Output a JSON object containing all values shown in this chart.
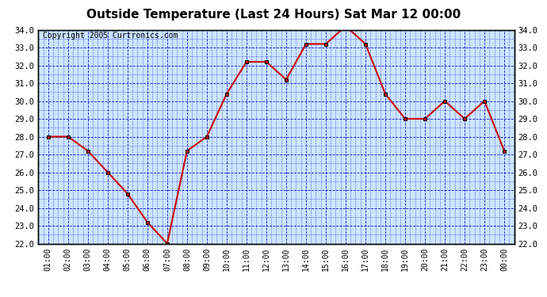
{
  "title": "Outside Temperature (Last 24 Hours) Sat Mar 12 00:00",
  "copyright": "Copyright 2005 Curtronics.com",
  "x_labels": [
    "01:00",
    "02:00",
    "03:00",
    "04:00",
    "05:00",
    "06:00",
    "07:00",
    "08:00",
    "09:00",
    "10:00",
    "11:00",
    "12:00",
    "13:00",
    "14:00",
    "15:00",
    "16:00",
    "17:00",
    "18:00",
    "19:00",
    "20:00",
    "21:00",
    "22:00",
    "23:00",
    "00:00"
  ],
  "y_values": [
    28.0,
    28.0,
    27.2,
    26.0,
    24.8,
    23.2,
    22.0,
    27.2,
    28.0,
    30.4,
    32.2,
    32.2,
    31.2,
    33.2,
    33.2,
    34.2,
    33.2,
    30.4,
    29.0,
    29.0,
    30.0,
    29.0,
    30.0,
    27.2
  ],
  "ylim": [
    22.0,
    34.0
  ],
  "yticks": [
    22.0,
    23.0,
    24.0,
    25.0,
    26.0,
    27.0,
    28.0,
    29.0,
    30.0,
    31.0,
    32.0,
    33.0,
    34.0
  ],
  "line_color": "#cc0000",
  "marker_color": "#cc0000",
  "bg_color": "#cce5ff",
  "grid_color": "#0000cc",
  "title_fontsize": 11,
  "copyright_fontsize": 7
}
